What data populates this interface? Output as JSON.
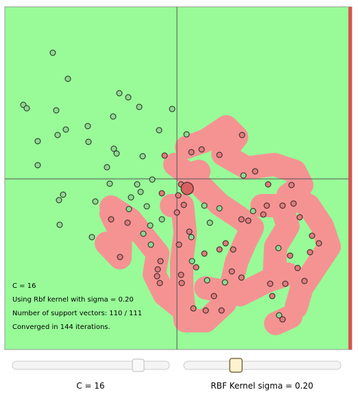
{
  "info": {
    "lines": [
      "C = 16",
      "Using Rbf kernel with sigma = 0.20",
      "Number of support vectors: 110 / 111",
      "Converged in 144 iterations."
    ]
  },
  "controls": {
    "c_label": "C = 16",
    "sigma_label": "RBF Kernel sigma = 0.20"
  }
}
